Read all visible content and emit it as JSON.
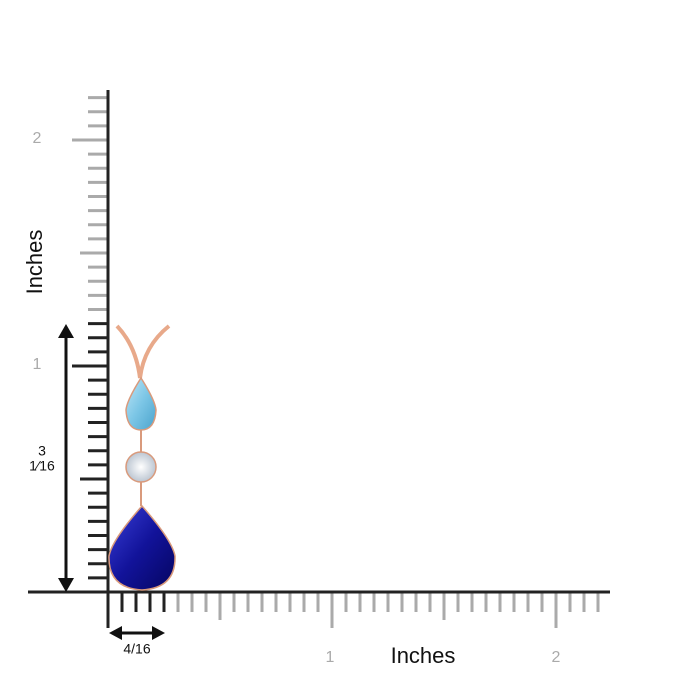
{
  "ruler": {
    "y_title": "Inches",
    "y_labels": [
      "2",
      "1"
    ],
    "x_title": "Inches",
    "x_labels": [
      "1",
      "2"
    ],
    "height_label": {
      "top": "3",
      "bottom": "1⁄16"
    },
    "width_label": "4/16"
  }
}
